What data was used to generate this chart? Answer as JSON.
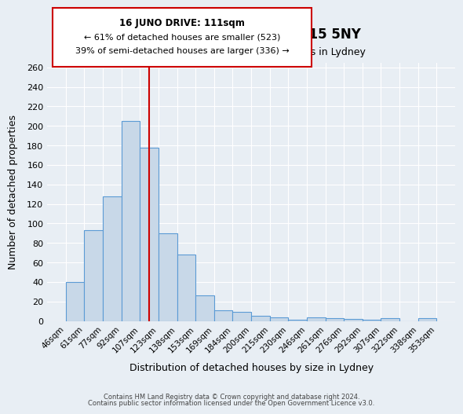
{
  "title": "16, JUNO DRIVE, LYDNEY, GL15 5NY",
  "subtitle": "Size of property relative to detached houses in Lydney",
  "xlabel": "Distribution of detached houses by size in Lydney",
  "ylabel": "Number of detached properties",
  "bar_labels": [
    "46sqm",
    "61sqm",
    "77sqm",
    "92sqm",
    "107sqm",
    "123sqm",
    "138sqm",
    "153sqm",
    "169sqm",
    "184sqm",
    "200sqm",
    "215sqm",
    "230sqm",
    "246sqm",
    "261sqm",
    "276sqm",
    "292sqm",
    "307sqm",
    "322sqm",
    "338sqm",
    "353sqm"
  ],
  "bar_values": [
    40,
    93,
    128,
    205,
    178,
    90,
    68,
    26,
    11,
    9,
    5,
    4,
    1,
    4,
    3,
    2,
    1,
    3,
    0,
    3
  ],
  "bar_color": "#c8d8e8",
  "bar_edge_color": "#5b9bd5",
  "vline_x": 4.5,
  "vline_color": "#cc0000",
  "annotation_title": "16 JUNO DRIVE: 111sqm",
  "annotation_line1": "← 61% of detached houses are smaller (523)",
  "annotation_line2": "39% of semi-detached houses are larger (336) →",
  "annotation_box_color": "#ffffff",
  "annotation_box_edge": "#cc0000",
  "ylim": [
    0,
    265
  ],
  "yticks": [
    0,
    20,
    40,
    60,
    80,
    100,
    120,
    140,
    160,
    180,
    200,
    220,
    240,
    260
  ],
  "bg_color": "#e8eef4",
  "grid_color": "#ffffff",
  "footer1": "Contains HM Land Registry data © Crown copyright and database right 2024.",
  "footer2": "Contains public sector information licensed under the Open Government Licence v3.0."
}
